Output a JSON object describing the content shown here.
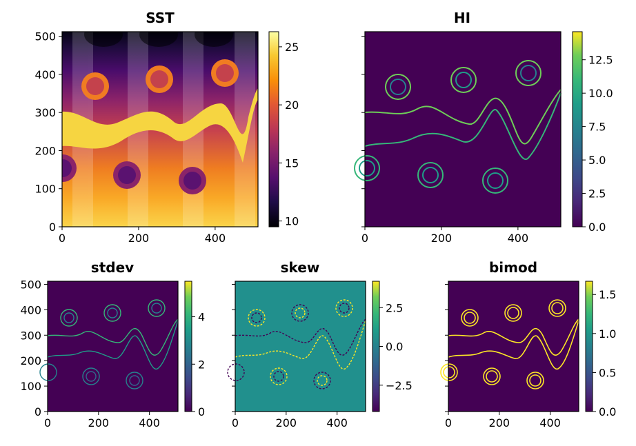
{
  "chart_data": [
    {
      "id": "sst",
      "type": "heatmap",
      "title": "SST",
      "colormap": "inferno",
      "xlim": [
        0,
        512
      ],
      "ylim": [
        0,
        512
      ],
      "xticks": [
        0,
        200,
        400
      ],
      "yticks": [
        0,
        100,
        200,
        300,
        400,
        500
      ],
      "show_yticklabels": true,
      "colorbar": {
        "ticks": [
          10,
          15,
          20,
          25
        ],
        "labels": [
          "10",
          "15",
          "20",
          "25"
        ],
        "range": [
          9.5,
          26.3
        ]
      }
    },
    {
      "id": "hi",
      "type": "heatmap",
      "title": "HI",
      "colormap": "viridis",
      "xlim": [
        0,
        512
      ],
      "ylim": [
        0,
        512
      ],
      "xticks": [
        0,
        200,
        400
      ],
      "yticks": [
        0,
        100,
        200,
        300,
        400,
        500
      ],
      "show_yticklabels": false,
      "colorbar": {
        "ticks": [
          0,
          2.5,
          5,
          7.5,
          10,
          12.5
        ],
        "labels": [
          "0.0",
          "2.5",
          "5.0",
          "7.5",
          "10.0",
          "12.5"
        ],
        "range": [
          0,
          14.6
        ]
      }
    },
    {
      "id": "stdev",
      "type": "heatmap",
      "title": "stdev",
      "colormap": "viridis",
      "xlim": [
        0,
        512
      ],
      "ylim": [
        0,
        512
      ],
      "xticks": [
        0,
        200,
        400
      ],
      "yticks": [
        0,
        100,
        200,
        300,
        400,
        500
      ],
      "show_yticklabels": true,
      "colorbar": {
        "ticks": [
          0,
          2,
          4
        ],
        "labels": [
          "0",
          "2",
          "4"
        ],
        "range": [
          0,
          5.5
        ]
      }
    },
    {
      "id": "skew",
      "type": "heatmap",
      "title": "skew",
      "colormap": "viridis",
      "xlim": [
        0,
        512
      ],
      "ylim": [
        0,
        512
      ],
      "xticks": [
        0,
        200,
        400
      ],
      "yticks": [
        0,
        100,
        200,
        300,
        400,
        500
      ],
      "show_yticklabels": false,
      "colorbar": {
        "ticks": [
          -2.5,
          0,
          2.5
        ],
        "labels": [
          "−2.5",
          "0.0",
          "2.5"
        ],
        "range": [
          -4.2,
          4.2
        ]
      }
    },
    {
      "id": "bimod",
      "type": "heatmap",
      "title": "bimod",
      "colormap": "viridis",
      "xlim": [
        0,
        512
      ],
      "ylim": [
        0,
        512
      ],
      "xticks": [
        0,
        200,
        400
      ],
      "yticks": [
        0,
        100,
        200,
        300,
        400,
        500
      ],
      "show_yticklabels": false,
      "colorbar": {
        "ticks": [
          0,
          0.5,
          1.0,
          1.5
        ],
        "labels": [
          "0.0",
          "0.5",
          "1.0",
          "1.5"
        ],
        "range": [
          0,
          1.67
        ]
      }
    }
  ]
}
